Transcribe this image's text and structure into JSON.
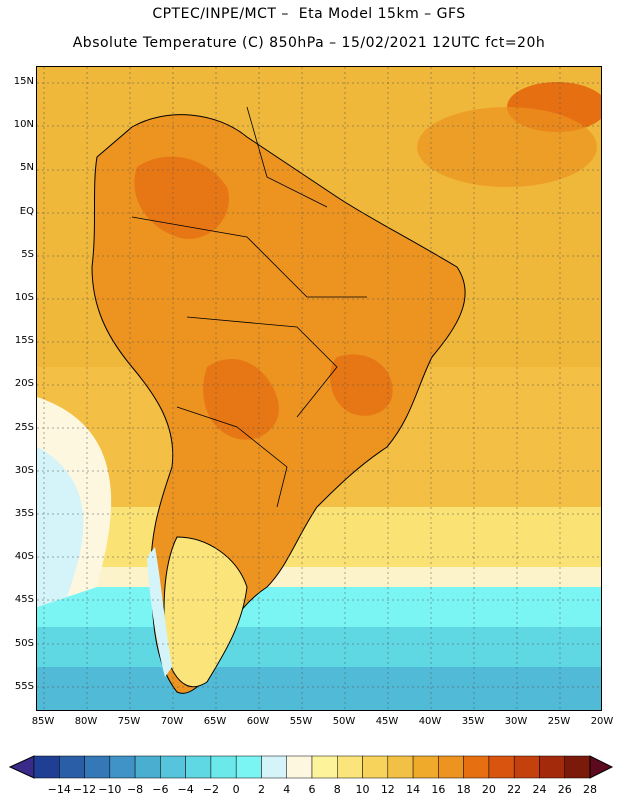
{
  "header": {
    "line1": "CPTEC/INPE/MCT –  Eta Model 15km – GFS",
    "line2": "Absolute Temperature (C) 850hPa – 15/02/2021 12UTC fct=20h"
  },
  "map": {
    "lat_ticks": [
      "15N",
      "10N",
      "5N",
      "EQ",
      "5S",
      "10S",
      "15S",
      "20S",
      "25S",
      "30S",
      "35S",
      "40S",
      "45S",
      "50S",
      "55S"
    ],
    "lon_ticks": [
      "85W",
      "80W",
      "75W",
      "70W",
      "65W",
      "60W",
      "55W",
      "50W",
      "45W",
      "40W",
      "35W",
      "30W",
      "25W",
      "20W"
    ]
  },
  "colorbar": {
    "labels": [
      "-14",
      "-12",
      "-10",
      "-8",
      "-6",
      "-4",
      "-2",
      "0",
      "2",
      "4",
      "6",
      "8",
      "10",
      "12",
      "14",
      "16",
      "18",
      "20",
      "22",
      "24",
      "26",
      "28"
    ],
    "colors": [
      "#1f3f94",
      "#2a5ea6",
      "#3578b7",
      "#3f93c6",
      "#4aaed1",
      "#56c4dc",
      "#5fd8e4",
      "#6ae8ea",
      "#7bf5f3",
      "#d4f4fa",
      "#fdf7e0",
      "#fdf39a",
      "#fbe57a",
      "#f7d35c",
      "#f3c046",
      "#efaa2c",
      "#ec9320",
      "#e66f12",
      "#d9550f",
      "#c4400c",
      "#a32a0a",
      "#7b1a0a"
    ]
  }
}
